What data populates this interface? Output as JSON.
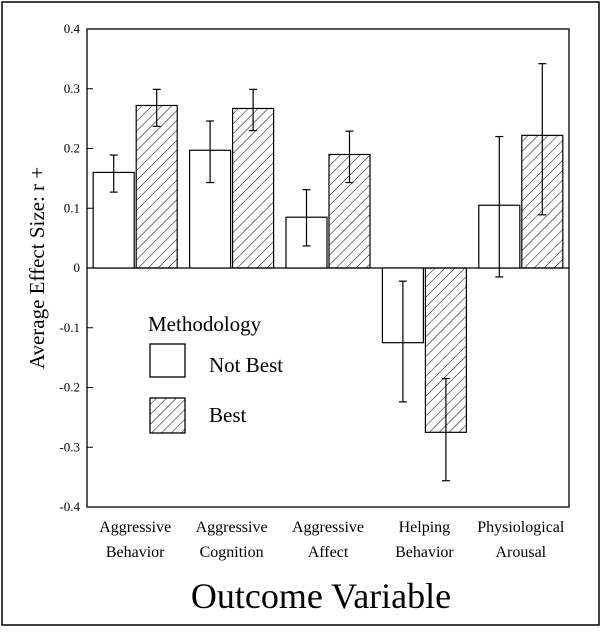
{
  "chart_data": {
    "type": "bar",
    "xlabel": "Outcome Variable",
    "ylabel": "Average Effect Size: r +",
    "ylim": [
      -0.4,
      0.4
    ],
    "yticks": [
      "0.4",
      "0.3",
      "0.2",
      "0.1",
      "0",
      "-0.1",
      "-0.2",
      "-0.3",
      "-0.4"
    ],
    "yticks_values": [
      0.4,
      0.3,
      0.2,
      0.1,
      0,
      -0.1,
      -0.2,
      -0.3,
      -0.4
    ],
    "categories": [
      [
        "Aggressive",
        "Behavior"
      ],
      [
        "Aggressive",
        "Cognition"
      ],
      [
        "Aggressive",
        "Affect"
      ],
      [
        "Helping",
        "Behavior"
      ],
      [
        "Physiological",
        "Arousal"
      ]
    ],
    "series": [
      {
        "name": "Not Best",
        "fill": "none",
        "values": [
          0.16,
          0.197,
          0.085,
          -0.125,
          0.105
        ],
        "err_low": [
          0.127,
          0.143,
          0.037,
          -0.224,
          -0.015
        ],
        "err_high": [
          0.189,
          0.246,
          0.131,
          -0.022,
          0.22
        ]
      },
      {
        "name": "Best",
        "fill": "hatched",
        "values": [
          0.272,
          0.267,
          0.19,
          -0.275,
          0.222
        ],
        "err_low": [
          0.237,
          0.23,
          0.143,
          -0.356,
          0.089
        ],
        "err_high": [
          0.299,
          0.299,
          0.229,
          -0.185,
          0.342
        ]
      }
    ],
    "legend": {
      "title": "Methodology",
      "position": "lower-left inside plot",
      "items": [
        "Not Best",
        "Best"
      ]
    },
    "grid": false,
    "colors": {
      "ink": "#000000",
      "background": "#ffffff"
    }
  }
}
